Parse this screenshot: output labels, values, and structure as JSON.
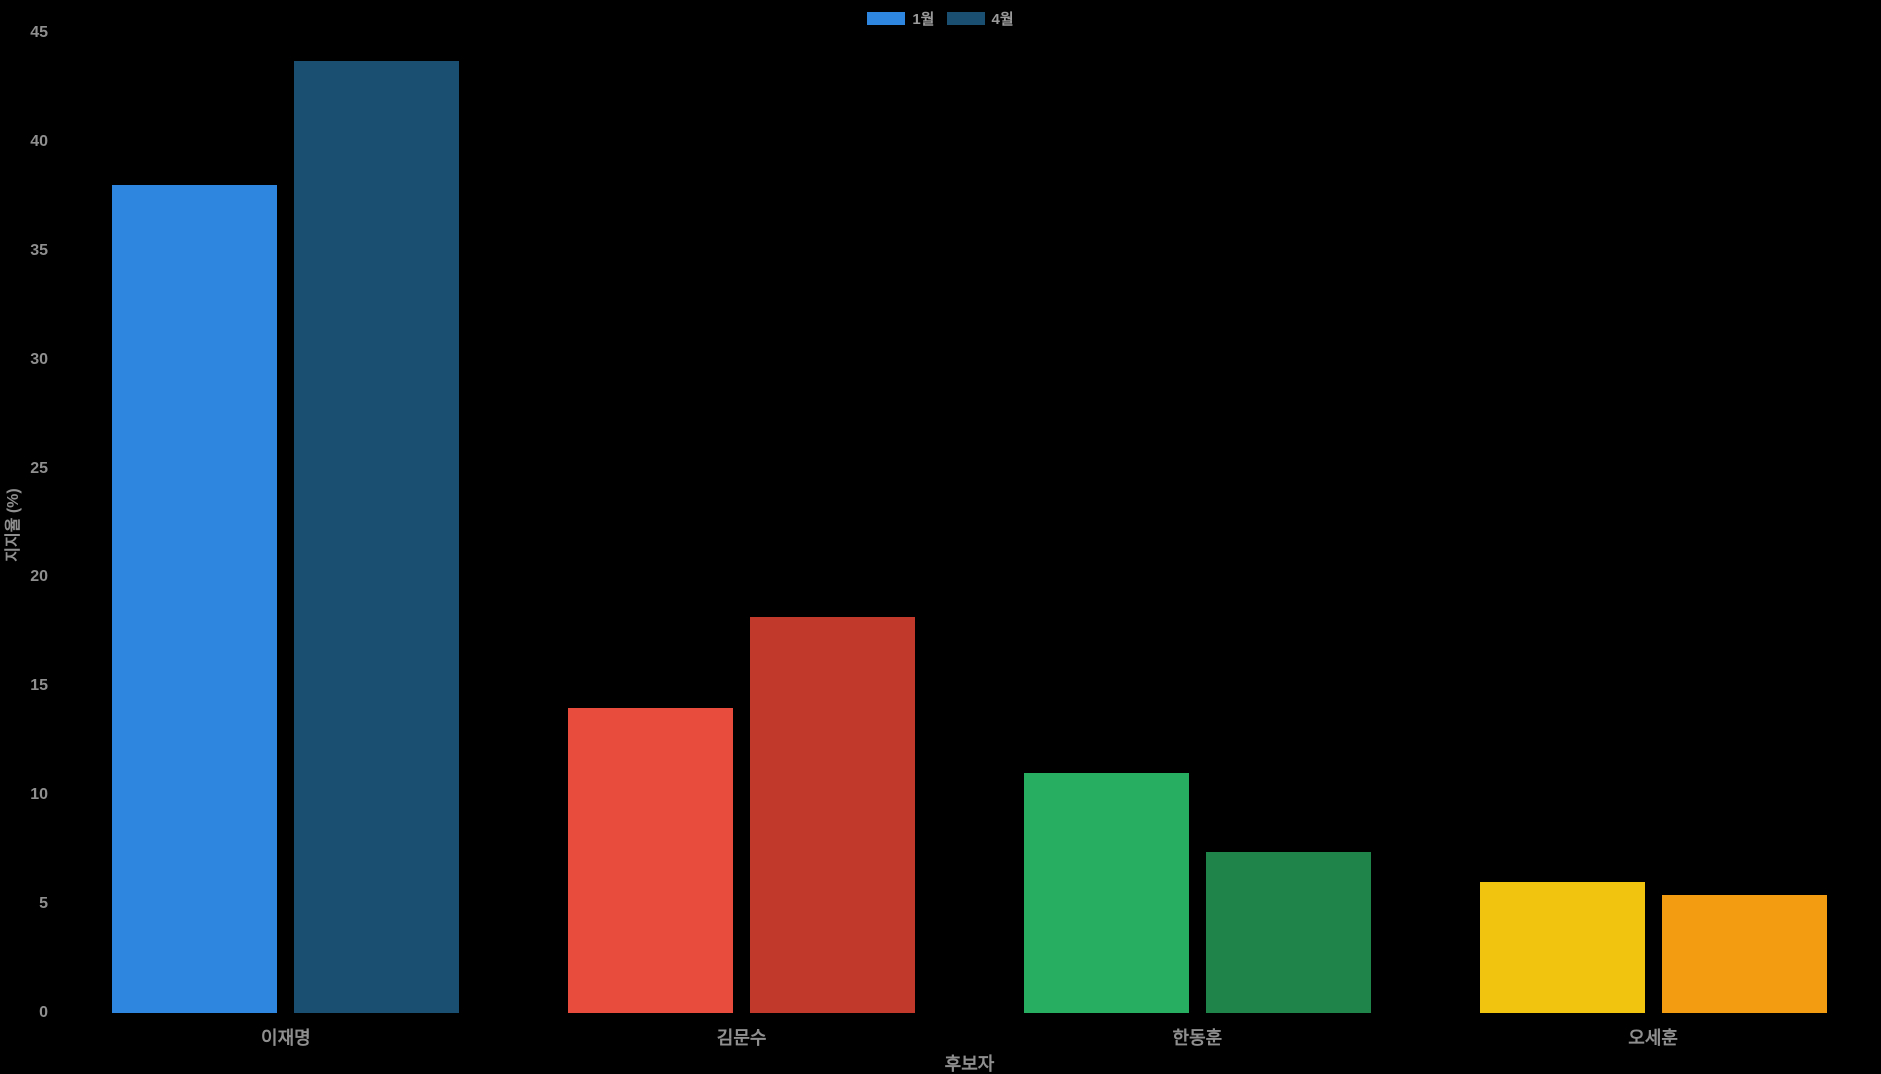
{
  "chart_data": {
    "type": "bar",
    "title": "",
    "categories": [
      "이재명",
      "김문수",
      "한동훈",
      "오세훈"
    ],
    "series": [
      {
        "name": "1월",
        "values": [
          38,
          14,
          11,
          6
        ]
      },
      {
        "name": "4월",
        "values": [
          43.7,
          18.2,
          7.4,
          5.4
        ]
      }
    ],
    "bar_colors_by_category": {
      "이재명": [
        "#2E86DE",
        "#1B4F72"
      ],
      "김문수": [
        "#E74C3C",
        "#C0392B"
      ],
      "한동훈": [
        "#27AE60",
        "#1E8449"
      ],
      "오세훈": [
        "#F1C40F",
        "#F39C12"
      ]
    },
    "legend": {
      "position": "top-center",
      "items": [
        {
          "label": "1월",
          "color": "#2E86DE"
        },
        {
          "label": "4월",
          "color": "#1B4F72"
        }
      ]
    },
    "xlabel": "후보자",
    "ylabel": "지지율 (%)",
    "ylim": [
      0,
      45
    ],
    "yticks": [
      0,
      5,
      10,
      15,
      20,
      25,
      30,
      35,
      40,
      45
    ],
    "grid": false,
    "background_color": "#000000",
    "text_color": "#8f8f8f"
  }
}
